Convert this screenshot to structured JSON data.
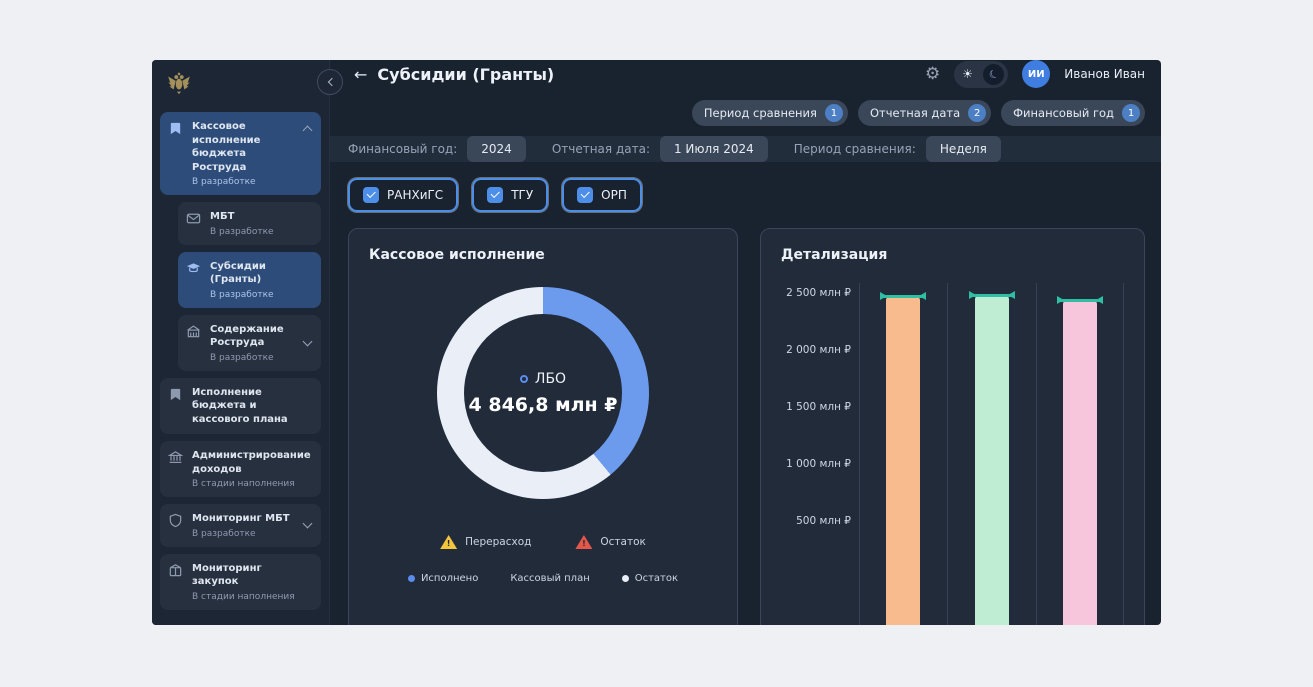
{
  "icons": {
    "gear": "⚙",
    "sun": "☀",
    "moon": "☾"
  },
  "header": {
    "back_arrow": "←",
    "title": "Субсидии (Гранты)",
    "user_initials": "ИИ",
    "user_name": "Иванов Иван"
  },
  "sidebar": {
    "items": [
      {
        "label": "Кассовое исполнение бюджета Роструда",
        "status": "В разработке",
        "selected": true
      },
      {
        "label": "МБТ",
        "status": "В разработке",
        "selected": false
      },
      {
        "label": "Субсидии (Гранты)",
        "status": "В разработке",
        "selected": true
      },
      {
        "label": "Содержание Роструда",
        "status": "В разработке",
        "selected": false
      },
      {
        "label": "Исполнение бюджета и кассового плана",
        "status": "",
        "selected": false
      },
      {
        "label": "Администрирование доходов",
        "status": "В стадии наполнения",
        "selected": false
      },
      {
        "label": "Мониторинг МБТ",
        "status": "В разработке",
        "selected": false
      },
      {
        "label": "Мониторинг закупок",
        "status": "В стадии наполнения",
        "selected": false
      }
    ]
  },
  "filter_summary_chips": [
    {
      "label": "Период сравнения",
      "count": "1"
    },
    {
      "label": "Отчетная дата",
      "count": "2"
    },
    {
      "label": "Финансовый год",
      "count": "1"
    }
  ],
  "filter_bar": {
    "fields": [
      {
        "label": "Финансовый год:",
        "value": "2024"
      },
      {
        "label": "Отчетная дата:",
        "value": "1 Июля 2024"
      },
      {
        "label": "Период сравнения:",
        "value": "Неделя"
      }
    ]
  },
  "org_filters": [
    {
      "label": "РАНХиГС",
      "checked": true
    },
    {
      "label": "ТГУ",
      "checked": true
    },
    {
      "label": "ОРП",
      "checked": true
    }
  ],
  "cards": {
    "cash": {
      "title": "Кассовое исполнение",
      "center_label": "ЛБО",
      "center_value": "4 846,8 млн ₽",
      "warnings": [
        {
          "label": "Перерасход",
          "color": "#f2c53d"
        },
        {
          "label": "Остаток",
          "color": "#e4564a"
        }
      ],
      "legend": [
        {
          "label": "Исполнено",
          "color": "#5b8def"
        },
        {
          "label": "Кассовый план",
          "color": ""
        },
        {
          "label": "Остаток",
          "color": "#e9eef7"
        }
      ]
    },
    "detail": {
      "title": "Детализация"
    }
  },
  "chart_data": [
    {
      "type": "pie",
      "variant": "donut",
      "title": "Кассовое исполнение",
      "center_label": "ЛБО",
      "center_value": "4 846,8 млн ₽",
      "segments": [
        {
          "name": "Исполнено",
          "percent": 39,
          "color": "#6c9bed"
        },
        {
          "name": "Остаток",
          "percent": 61,
          "color": "#e9eef7"
        }
      ],
      "legend": [
        "Исполнено",
        "Кассовый план",
        "Остаток"
      ]
    },
    {
      "type": "bar",
      "title": "Детализация",
      "y_ticks": [
        "2 500 млн ₽",
        "2 000 млн ₽",
        "1 500 млн ₽",
        "1 000 млн ₽",
        "500 млн ₽"
      ],
      "y_axis": {
        "max": 2500,
        "min": 0,
        "step": 500,
        "unit": "млн ₽"
      },
      "bars": [
        {
          "value": 2465,
          "color": "#f8bb8d"
        },
        {
          "value": 2470,
          "color": "#bfedd4"
        },
        {
          "value": 2430,
          "color": "#f7c6dc"
        }
      ],
      "target_marker_color": "#2fbfa3",
      "grid": "vertical",
      "legend_position": "none"
    }
  ]
}
